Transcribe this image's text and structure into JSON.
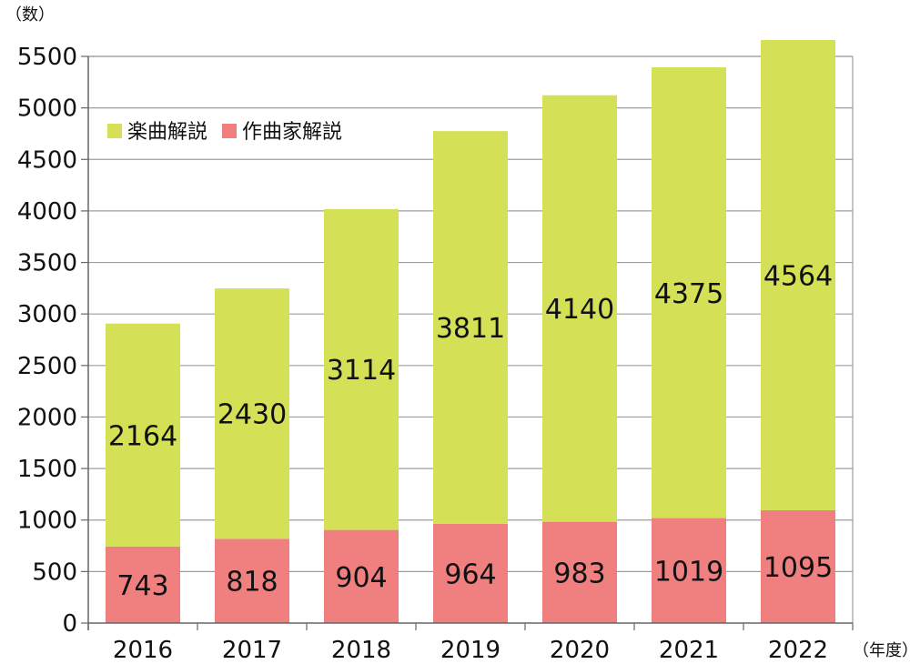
{
  "chart_data": {
    "type": "bar",
    "stacked": true,
    "categories": [
      "2016",
      "2017",
      "2018",
      "2019",
      "2020",
      "2021",
      "2022"
    ],
    "series": [
      {
        "name": "作曲家解説",
        "values": [
          743,
          818,
          904,
          964,
          983,
          1019,
          1095
        ],
        "color": "#f08080"
      },
      {
        "name": "楽曲解説",
        "values": [
          2164,
          2430,
          3114,
          3811,
          4140,
          4375,
          4564
        ],
        "color": "#d4e157"
      }
    ],
    "ylabel": "（数）",
    "xlabel": "（年度）",
    "ylim": [
      0,
      5500
    ],
    "yticks": [
      0,
      500,
      1000,
      1500,
      2000,
      2500,
      3000,
      3500,
      4000,
      4500,
      5000,
      5500
    ],
    "grid": true,
    "legend_position": "top-left",
    "legend_order": [
      "楽曲解説",
      "作曲家解説"
    ]
  }
}
